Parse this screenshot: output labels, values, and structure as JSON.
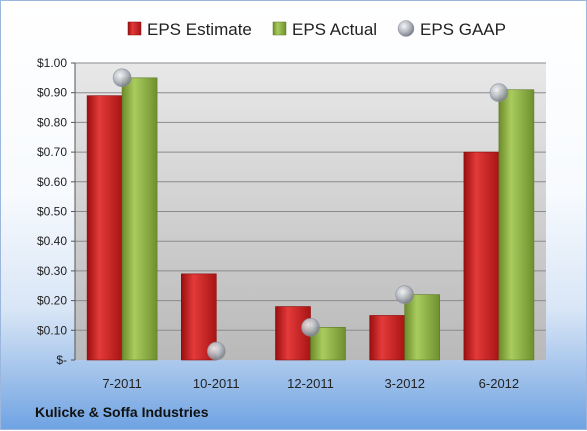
{
  "chart_data": {
    "type": "bar",
    "categories": [
      "7-2011",
      "10-2011",
      "12-2011",
      "3-2012",
      "6-2012"
    ],
    "series": [
      {
        "name": "EPS Estimate",
        "values": [
          0.89,
          0.29,
          0.18,
          0.15,
          0.7
        ],
        "color": "#cc1f1f"
      },
      {
        "name": "EPS Actual",
        "values": [
          0.95,
          null,
          0.11,
          0.22,
          0.91
        ],
        "color": "#8db043"
      },
      {
        "name": "EPS GAAP",
        "type": "scatter",
        "values": [
          0.95,
          0.03,
          0.11,
          0.22,
          0.9
        ],
        "color": "#b8bcc4"
      }
    ],
    "y_ticks": [
      {
        "value": 0.0,
        "label": "$-"
      },
      {
        "value": 0.1,
        "label": "$0.10"
      },
      {
        "value": 0.2,
        "label": "$0.20"
      },
      {
        "value": 0.3,
        "label": "$0.30"
      },
      {
        "value": 0.4,
        "label": "$0.40"
      },
      {
        "value": 0.5,
        "label": "$0.50"
      },
      {
        "value": 0.6,
        "label": "$0.60"
      },
      {
        "value": 0.7,
        "label": "$0.70"
      },
      {
        "value": 0.8,
        "label": "$0.80"
      },
      {
        "value": 0.9,
        "label": "$0.90"
      },
      {
        "value": 1.0,
        "label": "$1.00"
      }
    ],
    "ylim": [
      0,
      1.0
    ],
    "grid": true,
    "legend": "top",
    "footer": "Kulicke & Soffa Industries"
  }
}
